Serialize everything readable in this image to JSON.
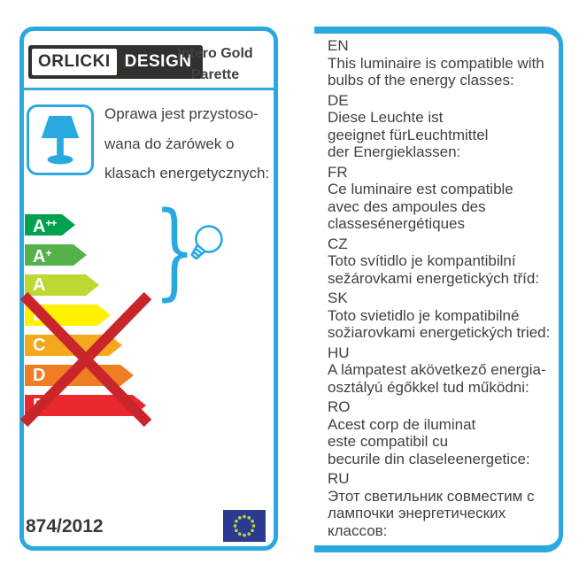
{
  "colors": {
    "accent_blue": "#2AA9E1",
    "logo_dark": "#332F2D",
    "cross_red": "#C9262C",
    "eu_flag_blue": "#2B3990",
    "eu_star": "#B5CF3B"
  },
  "header": {
    "logo_left": "ORLICKI",
    "logo_right": "DESIGN",
    "product_line1": "Intero Gold",
    "product_line2": "Parette"
  },
  "left_panel": {
    "polish_text_lines": [
      "Oprawa jest przystoso-",
      "wana do żarówek o",
      "klasach energetycznych:"
    ],
    "regulation": "874/2012",
    "energy_classes": [
      {
        "label": "A",
        "sup": "++",
        "color": "#00A14F",
        "width": 57,
        "crossed": false
      },
      {
        "label": "A",
        "sup": "+",
        "color": "#55B24B",
        "width": 70,
        "crossed": false
      },
      {
        "label": "A",
        "sup": "",
        "color": "#BFD732",
        "width": 84,
        "crossed": false
      },
      {
        "label": "B",
        "sup": "",
        "color": "#FFF101",
        "width": 97,
        "crossed": true
      },
      {
        "label": "C",
        "sup": "",
        "color": "#F4A81D",
        "width": 110,
        "crossed": true
      },
      {
        "label": "D",
        "sup": "",
        "color": "#EF7D23",
        "width": 123,
        "crossed": true
      },
      {
        "label": "E",
        "sup": "",
        "color": "#E9272E",
        "width": 137,
        "crossed": true
      }
    ]
  },
  "right_panel": {
    "languages": [
      {
        "code": "EN",
        "lines": [
          "This luminaire is compatible with",
          "bulbs of the energy classes:"
        ]
      },
      {
        "code": "DE",
        "lines": [
          "Diese Leuchte ist",
          "geeignet fürLeuchtmittel",
          "der Energieklassen:"
        ]
      },
      {
        "code": "FR",
        "lines": [
          "Ce luminaire est compatible",
          "avec des ampoules des",
          "classesénergétiques"
        ]
      },
      {
        "code": "CZ",
        "lines": [
          "Toto svítidlo je kompantibilní",
          "sežárovkami energetických tříd:"
        ]
      },
      {
        "code": "SK",
        "lines": [
          "Toto svietidlo je kompatibilné",
          "sožiarovkami energetických tried:"
        ]
      },
      {
        "code": "HU",
        "lines": [
          "A lámpatest akövetkező energia-",
          "osztályú égőkkel tud működni:"
        ]
      },
      {
        "code": "RO",
        "lines": [
          "Acest corp de iluminat",
          "este compatibil cu",
          "becurile din claseleenergetice:"
        ]
      },
      {
        "code": "RU",
        "lines": [
          "Этот светильник совместим с",
          "лампочки энергетических",
          "классов:"
        ]
      }
    ]
  }
}
